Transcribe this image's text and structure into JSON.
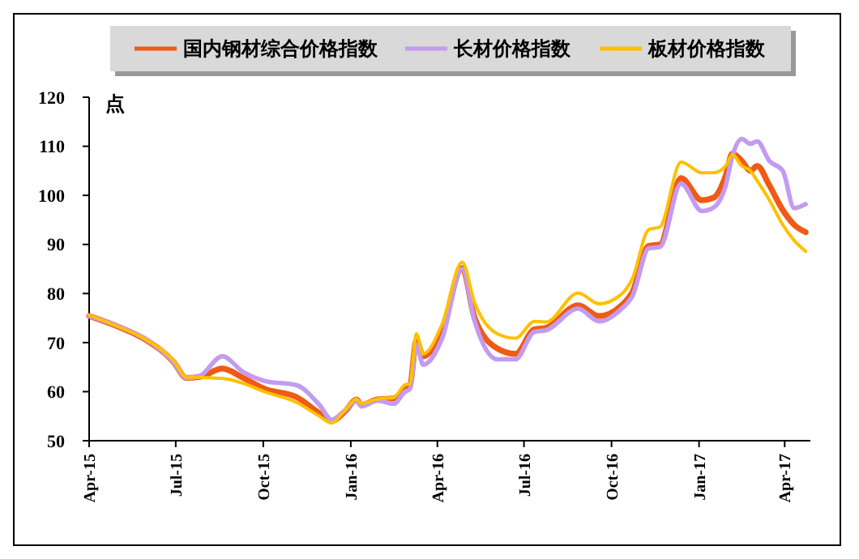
{
  "chart_data": {
    "type": "line",
    "ylabel": "点",
    "x": [
      "2015-04-01",
      "2015-05-02",
      "2015-05-31",
      "2015-06-29",
      "2015-07-12",
      "2015-07-26",
      "2015-08-19",
      "2015-09-10",
      "2015-10-02",
      "2015-11-05",
      "2015-11-29",
      "2015-12-12",
      "2015-12-26",
      "2016-01-07",
      "2016-01-12",
      "2016-01-29",
      "2016-02-15",
      "2016-02-27",
      "2016-03-03",
      "2016-03-10",
      "2016-03-17",
      "2016-04-06",
      "2016-04-27",
      "2016-05-10",
      "2016-06-03",
      "2016-06-22",
      "2016-07-12",
      "2016-07-24",
      "2016-08-27",
      "2016-09-18",
      "2016-10-11",
      "2016-10-23",
      "2016-11-09",
      "2016-11-21",
      "2016-12-13",
      "2017-01-04",
      "2017-01-16",
      "2017-01-29",
      "2017-02-05",
      "2017-02-15",
      "2017-02-24",
      "2017-03-03",
      "2017-03-16",
      "2017-03-30",
      "2017-04-11",
      "2017-04-23"
    ],
    "series": [
      {
        "name": "国内钢材综合价格指数",
        "color": "#f05a14",
        "values": [
          75.4,
          73.2,
          70.5,
          66,
          62.8,
          63,
          64.7,
          62.8,
          60.6,
          58.9,
          55.6,
          54,
          56,
          58.4,
          57.3,
          58.4,
          58.6,
          60.5,
          61,
          70.5,
          67.2,
          72.5,
          85.2,
          75.1,
          68.8,
          67.7,
          72.7,
          73,
          77.6,
          75.4,
          77.5,
          80.3,
          89.7,
          90,
          103.5,
          99,
          99.5,
          104,
          108.5,
          107,
          105,
          106,
          102,
          97,
          94,
          92.5
        ]
      },
      {
        "name": "长材价格指数",
        "color": "#c39bf0",
        "values": [
          75.4,
          73.3,
          70.6,
          66,
          62.8,
          63.2,
          67.2,
          64,
          62.2,
          61.3,
          57.3,
          54.3,
          56.2,
          58.2,
          57,
          58.2,
          57.5,
          60,
          60.5,
          69.5,
          65.5,
          70.9,
          85,
          74.5,
          66.6,
          66.6,
          72.2,
          72.5,
          76.9,
          74.3,
          76.8,
          79.5,
          89.2,
          89.5,
          102.4,
          96.8,
          97.5,
          102,
          108,
          111.5,
          110.5,
          111,
          107,
          105,
          97.4,
          98.2
        ]
      },
      {
        "name": "板材价格指数",
        "color": "#ffc000",
        "values": [
          75.6,
          73.2,
          70.6,
          66.3,
          63,
          62.9,
          62.7,
          61.7,
          60,
          57.8,
          55,
          53.6,
          56.3,
          58.5,
          57.6,
          58.5,
          58.8,
          61.4,
          61.6,
          71.8,
          67.7,
          73.8,
          86.4,
          78.2,
          71.8,
          70.9,
          74.3,
          74.2,
          80.1,
          77.9,
          79.8,
          83.1,
          93,
          93.6,
          106.8,
          104.6,
          104.6,
          106,
          108.3,
          106,
          105,
          103,
          99,
          94,
          90.8,
          88.6
        ]
      }
    ],
    "xlim": [
      "2015-04-01",
      "2017-04-28"
    ],
    "xticks": [
      {
        "value": "2015-04-01",
        "label": "Apr-15"
      },
      {
        "value": "2015-07-01",
        "label": "Jul-15"
      },
      {
        "value": "2015-10-01",
        "label": "Oct-15"
      },
      {
        "value": "2016-01-01",
        "label": "Jan-16"
      },
      {
        "value": "2016-04-01",
        "label": "Apr-16"
      },
      {
        "value": "2016-07-01",
        "label": "Jul-16"
      },
      {
        "value": "2016-10-01",
        "label": "Oct-16"
      },
      {
        "value": "2017-01-01",
        "label": "Jan-17"
      },
      {
        "value": "2017-04-01",
        "label": "Apr-17"
      }
    ],
    "ylim": [
      50,
      120
    ],
    "yticks": [
      50,
      60,
      70,
      80,
      90,
      100,
      110,
      120
    ],
    "legend": "top",
    "grid": false,
    "marker": "none",
    "line_style": "solid"
  }
}
